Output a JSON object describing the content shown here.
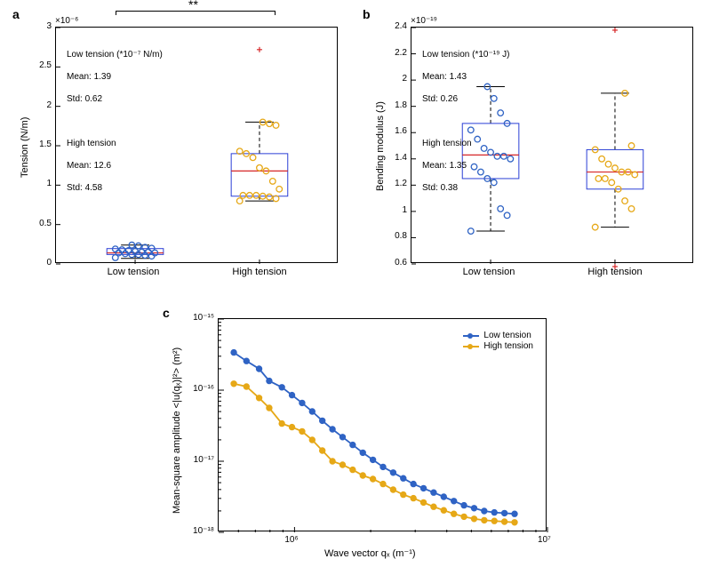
{
  "colors": {
    "low": "#2f63c4",
    "high": "#e6a817",
    "box": "#2b3fd6",
    "median": "#d62728",
    "whisker": "#000000",
    "outlier": "#d62728",
    "axis": "#000000",
    "bg": "#ffffff"
  },
  "panelA": {
    "label": "a",
    "ylabel": "Tension (N/m)",
    "yexp": "×10⁻⁶",
    "ylim": [
      0,
      3
    ],
    "yticks": [
      0,
      0.5,
      1,
      1.5,
      2,
      2.5,
      3
    ],
    "categories": [
      "Low tension",
      "High tension"
    ],
    "sig": "**",
    "annot_low_title": "Low tension (*10⁻⁷ N/m)",
    "annot_low_mean": "Mean: 1.39",
    "annot_low_std": "Std: 0.62",
    "annot_high_title": "High tension",
    "annot_high_mean": "Mean: 12.6",
    "annot_high_std": "Std: 4.58",
    "box_low": {
      "q1": 0.12,
      "med": 0.14,
      "q3": 0.195,
      "wlo": 0.07,
      "whi": 0.24
    },
    "box_high": {
      "q1": 0.86,
      "med": 1.18,
      "q3": 1.4,
      "wlo": 0.8,
      "whi": 1.8
    },
    "points_low": [
      0.08,
      0.1,
      0.11,
      0.12,
      0.12,
      0.13,
      0.14,
      0.14,
      0.15,
      0.15,
      0.16,
      0.17,
      0.18,
      0.19,
      0.2,
      0.21,
      0.23,
      0.24
    ],
    "points_high": [
      0.8,
      0.83,
      0.85,
      0.86,
      0.87,
      0.87,
      0.87,
      0.95,
      1.05,
      1.18,
      1.22,
      1.35,
      1.4,
      1.43,
      1.76,
      1.78,
      1.8
    ],
    "outliers_high": [
      2.72
    ]
  },
  "panelB": {
    "label": "b",
    "ylabel": "Bending modulus (J)",
    "yexp": "×10⁻¹⁹",
    "ylim": [
      0.6,
      2.4
    ],
    "yticks": [
      0.6,
      0.8,
      1.0,
      1.2,
      1.4,
      1.6,
      1.8,
      2.0,
      2.2,
      2.4
    ],
    "categories": [
      "Low tension",
      "High tension"
    ],
    "annot_low_title": "Low tension (*10⁻¹⁹ J)",
    "annot_low_mean": "Mean: 1.43",
    "annot_low_std": "Std: 0.26",
    "annot_high_title": "High tension",
    "annot_high_mean": "Mean: 1.35",
    "annot_high_std": "Std: 0.38",
    "box_low": {
      "q1": 1.25,
      "med": 1.43,
      "q3": 1.67,
      "wlo": 0.85,
      "whi": 1.95
    },
    "box_high": {
      "q1": 1.17,
      "med": 1.3,
      "q3": 1.47,
      "wlo": 0.88,
      "whi": 1.9
    },
    "points_low": [
      0.85,
      0.97,
      1.02,
      1.22,
      1.25,
      1.3,
      1.34,
      1.4,
      1.42,
      1.42,
      1.45,
      1.48,
      1.55,
      1.62,
      1.67,
      1.75,
      1.86,
      1.95
    ],
    "points_high": [
      0.88,
      1.02,
      1.08,
      1.17,
      1.22,
      1.25,
      1.25,
      1.28,
      1.3,
      1.3,
      1.33,
      1.36,
      1.4,
      1.47,
      1.5,
      1.9
    ],
    "outliers_high": [
      0.58,
      2.38
    ]
  },
  "panelC": {
    "label": "c",
    "ylabel": "Mean-square amplitude <|u(qₓ)|²> (m²)",
    "xlabel": "Wave vector qₓ (m⁻¹)",
    "xlim_log": [
      5.7,
      7.0
    ],
    "ylim_log": [
      -18,
      -15
    ],
    "xticks_log": [
      6,
      7
    ],
    "xtick_labels": [
      "10⁶",
      "10⁷"
    ],
    "yticks_log": [
      -18,
      -17,
      -16,
      -15
    ],
    "ytick_labels": [
      "10⁻¹⁸",
      "10⁻¹⁷",
      "10⁻¹⁶",
      "10⁻¹⁵"
    ],
    "legend": {
      "low": "Low tension",
      "high": "High tension"
    },
    "series_low": {
      "x_log": [
        5.76,
        5.81,
        5.86,
        5.9,
        5.95,
        5.99,
        6.03,
        6.07,
        6.11,
        6.15,
        6.19,
        6.23,
        6.27,
        6.31,
        6.35,
        6.39,
        6.43,
        6.47,
        6.51,
        6.55,
        6.59,
        6.63,
        6.67,
        6.71,
        6.75,
        6.79,
        6.83,
        6.87
      ],
      "y_log": [
        -15.47,
        -15.59,
        -15.7,
        -15.87,
        -15.96,
        -16.07,
        -16.18,
        -16.3,
        -16.43,
        -16.55,
        -16.66,
        -16.77,
        -16.88,
        -16.98,
        -17.08,
        -17.16,
        -17.24,
        -17.32,
        -17.38,
        -17.44,
        -17.5,
        -17.56,
        -17.62,
        -17.66,
        -17.7,
        -17.72,
        -17.73,
        -17.74
      ]
    },
    "series_high": {
      "x_log": [
        5.76,
        5.81,
        5.86,
        5.9,
        5.95,
        5.99,
        6.03,
        6.07,
        6.11,
        6.15,
        6.19,
        6.23,
        6.27,
        6.31,
        6.35,
        6.39,
        6.43,
        6.47,
        6.51,
        6.55,
        6.59,
        6.63,
        6.67,
        6.71,
        6.75,
        6.79,
        6.83,
        6.87
      ],
      "y_log": [
        -15.91,
        -15.95,
        -16.11,
        -16.25,
        -16.47,
        -16.52,
        -16.58,
        -16.7,
        -16.85,
        -17.0,
        -17.05,
        -17.12,
        -17.2,
        -17.25,
        -17.32,
        -17.4,
        -17.47,
        -17.52,
        -17.58,
        -17.64,
        -17.69,
        -17.74,
        -17.78,
        -17.81,
        -17.83,
        -17.84,
        -17.85,
        -17.86
      ]
    }
  }
}
